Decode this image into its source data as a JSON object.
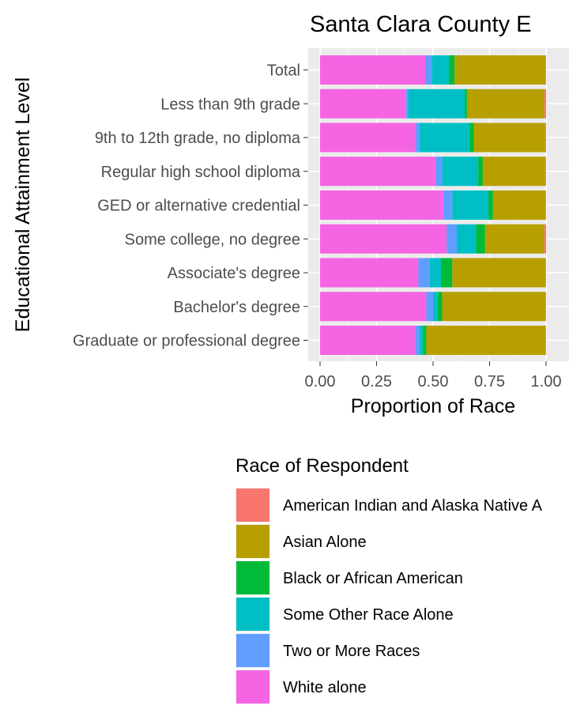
{
  "chart_data": {
    "type": "bar",
    "orientation": "horizontal",
    "stacked": "proportion",
    "title": "Santa Clara County E",
    "xlabel": "Proportion of Race",
    "ylabel": "Educational Attainment Level",
    "xlim": [
      0,
      1
    ],
    "xticks": [
      "0.00",
      "0.25",
      "0.50",
      "0.75",
      "1.00"
    ],
    "grid": true,
    "legend_title": "Race of Respondent",
    "legend_position": "bottom",
    "categories": [
      "Total",
      "Less than 9th grade",
      "9th to 12th grade, no diploma",
      "Regular high school diploma",
      "GED or alternative credential",
      "Some college, no degree",
      "Associate's degree",
      "Bachelor's degree",
      "Graduate or professional degree"
    ],
    "series": [
      {
        "name": "White alone",
        "color": "#F564E3",
        "values": [
          0.465,
          0.38,
          0.42,
          0.51,
          0.545,
          0.56,
          0.435,
          0.47,
          0.42
        ]
      },
      {
        "name": "Two or More Races",
        "color": "#619CFF",
        "values": [
          0.03,
          0.01,
          0.02,
          0.03,
          0.04,
          0.045,
          0.05,
          0.03,
          0.02
        ]
      },
      {
        "name": "Some Other Race Alone",
        "color": "#00BFC4",
        "values": [
          0.075,
          0.25,
          0.22,
          0.16,
          0.16,
          0.085,
          0.05,
          0.02,
          0.015
        ]
      },
      {
        "name": "Black or African American",
        "color": "#00BA38",
        "values": [
          0.025,
          0.01,
          0.02,
          0.02,
          0.02,
          0.04,
          0.05,
          0.02,
          0.015
        ]
      },
      {
        "name": "Asian Alone",
        "color": "#B79F00",
        "values": [
          0.402,
          0.342,
          0.316,
          0.276,
          0.232,
          0.262,
          0.412,
          0.457,
          0.527
        ]
      },
      {
        "name": "American Indian and Alaska Native A",
        "color": "#F8766D",
        "values": [
          0.003,
          0.008,
          0.004,
          0.004,
          0.003,
          0.008,
          0.003,
          0.003,
          0.003
        ]
      }
    ],
    "legend_order": [
      "American Indian and Alaska Native A",
      "Asian Alone",
      "Black or African American",
      "Some Other Race Alone",
      "Two or More Races",
      "White alone"
    ]
  }
}
